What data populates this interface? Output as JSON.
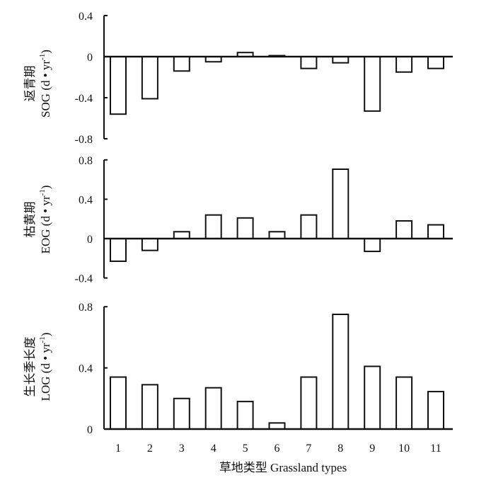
{
  "chart_data": [
    {
      "type": "bar",
      "ylabel_cn": "返青期",
      "ylabel_en": "SOG (d • yr",
      "ylabel_sup": "-1",
      "ylabel_close": ")",
      "categories": [
        "1",
        "2",
        "3",
        "4",
        "5",
        "6",
        "7",
        "8",
        "9",
        "10",
        "11"
      ],
      "values": [
        -0.56,
        -0.41,
        -0.14,
        -0.05,
        0.04,
        0.01,
        -0.115,
        -0.06,
        -0.53,
        -0.15,
        -0.115
      ],
      "ylim": [
        -0.8,
        0.4
      ],
      "yticks": [
        0.4,
        0,
        -0.4,
        -0.8
      ],
      "ytick_labels": [
        "0.4",
        "0",
        "-0.4",
        "-0.8"
      ]
    },
    {
      "type": "bar",
      "ylabel_cn": "枯黄期",
      "ylabel_en": "EOG (d • yr",
      "ylabel_sup": "-1",
      "ylabel_close": ")",
      "categories": [
        "1",
        "2",
        "3",
        "4",
        "5",
        "6",
        "7",
        "8",
        "9",
        "10",
        "11"
      ],
      "values": [
        -0.23,
        -0.12,
        0.07,
        0.24,
        0.21,
        0.07,
        0.24,
        0.705,
        -0.13,
        0.18,
        0.14
      ],
      "ylim": [
        -0.4,
        0.8
      ],
      "yticks": [
        0.8,
        0.4,
        0,
        -0.4
      ],
      "ytick_labels": [
        "0.8",
        "0.4",
        "0",
        "-0.4"
      ]
    },
    {
      "type": "bar",
      "ylabel_cn": "生长季长度",
      "ylabel_en": "LOG (d • yr",
      "ylabel_sup": "-1",
      "ylabel_close": ")",
      "categories": [
        "1",
        "2",
        "3",
        "4",
        "5",
        "6",
        "7",
        "8",
        "9",
        "10",
        "11"
      ],
      "values": [
        0.34,
        0.29,
        0.2,
        0.27,
        0.18,
        0.04,
        0.34,
        0.75,
        0.41,
        0.34,
        0.245
      ],
      "ylim": [
        0,
        0.8
      ],
      "yticks": [
        0.8,
        0.4,
        0
      ],
      "ytick_labels": [
        "0.8",
        "0.4",
        "0"
      ],
      "xlabel": "草地类型 Grassland types"
    }
  ]
}
